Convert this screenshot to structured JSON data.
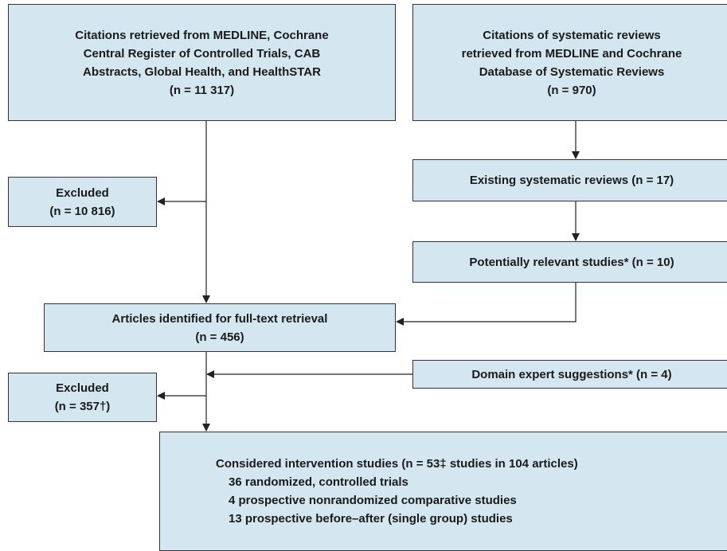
{
  "nodes": [
    {
      "lines": [
        "Citations retrieved from MEDLINE, Cochrane",
        "Central Register of Controlled Trials, CAB",
        "Abstracts, Global Health, and HealthSTAR",
        "(n = 11 317)"
      ]
    },
    {
      "lines": [
        "Citations of systematic reviews",
        "retrieved from MEDLINE and Cochrane",
        "Database of Systematic Reviews",
        "(n = 970)"
      ]
    },
    {
      "lines": [
        "Existing systematic reviews (n = 17)"
      ]
    },
    {
      "lines": [
        "Potentially relevant studies* (n = 10)"
      ]
    },
    {
      "lines": [
        "Excluded",
        "(n = 10 816)"
      ]
    },
    {
      "lines": [
        "Articles identified for full-text retrieval",
        "(n = 456)"
      ]
    },
    {
      "lines": [
        "Domain expert suggestions* (n = 4)"
      ]
    },
    {
      "lines": [
        "Excluded",
        "(n = 357†)"
      ]
    },
    {
      "lines": [
        "Considered intervention studies (n = 53‡ studies in 104 articles)",
        "36 randomized, controlled trials",
        "4 prospective nonrandomized comparative studies",
        "13 prospective before–after (single group) studies"
      ]
    }
  ]
}
